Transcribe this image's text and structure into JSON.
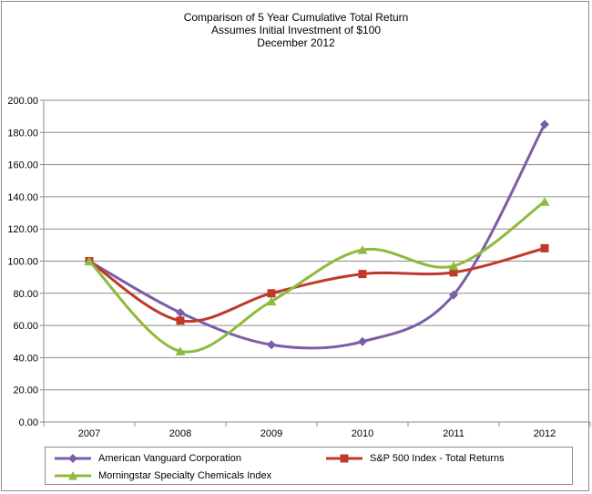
{
  "chart_data": {
    "type": "line",
    "title": [
      "Comparison of 5 Year Cumulative Total Return",
      "Assumes Initial Investment of $100",
      "December 2012"
    ],
    "categories": [
      "2007",
      "2008",
      "2009",
      "2010",
      "2011",
      "2012"
    ],
    "ylim": [
      0,
      200
    ],
    "yticks": [
      "0.00",
      "20.00",
      "40.00",
      "60.00",
      "80.00",
      "100.00",
      "120.00",
      "140.00",
      "160.00",
      "180.00",
      "200.00"
    ],
    "grid": true,
    "legend_position": "bottom",
    "series": [
      {
        "name": "American Vanguard Corporation",
        "values": [
          100,
          68,
          48,
          50,
          79,
          185
        ],
        "color": "#7b5ea7",
        "marker": "diamond"
      },
      {
        "name": "S&P 500 Index - Total Returns",
        "values": [
          100,
          63,
          80,
          92,
          93,
          108
        ],
        "color": "#c0392b",
        "marker": "square"
      },
      {
        "name": "Morningstar Specialty Chemicals Index",
        "values": [
          100,
          44,
          75,
          107,
          97,
          137
        ],
        "color": "#8dbb3b",
        "marker": "triangle"
      }
    ]
  }
}
